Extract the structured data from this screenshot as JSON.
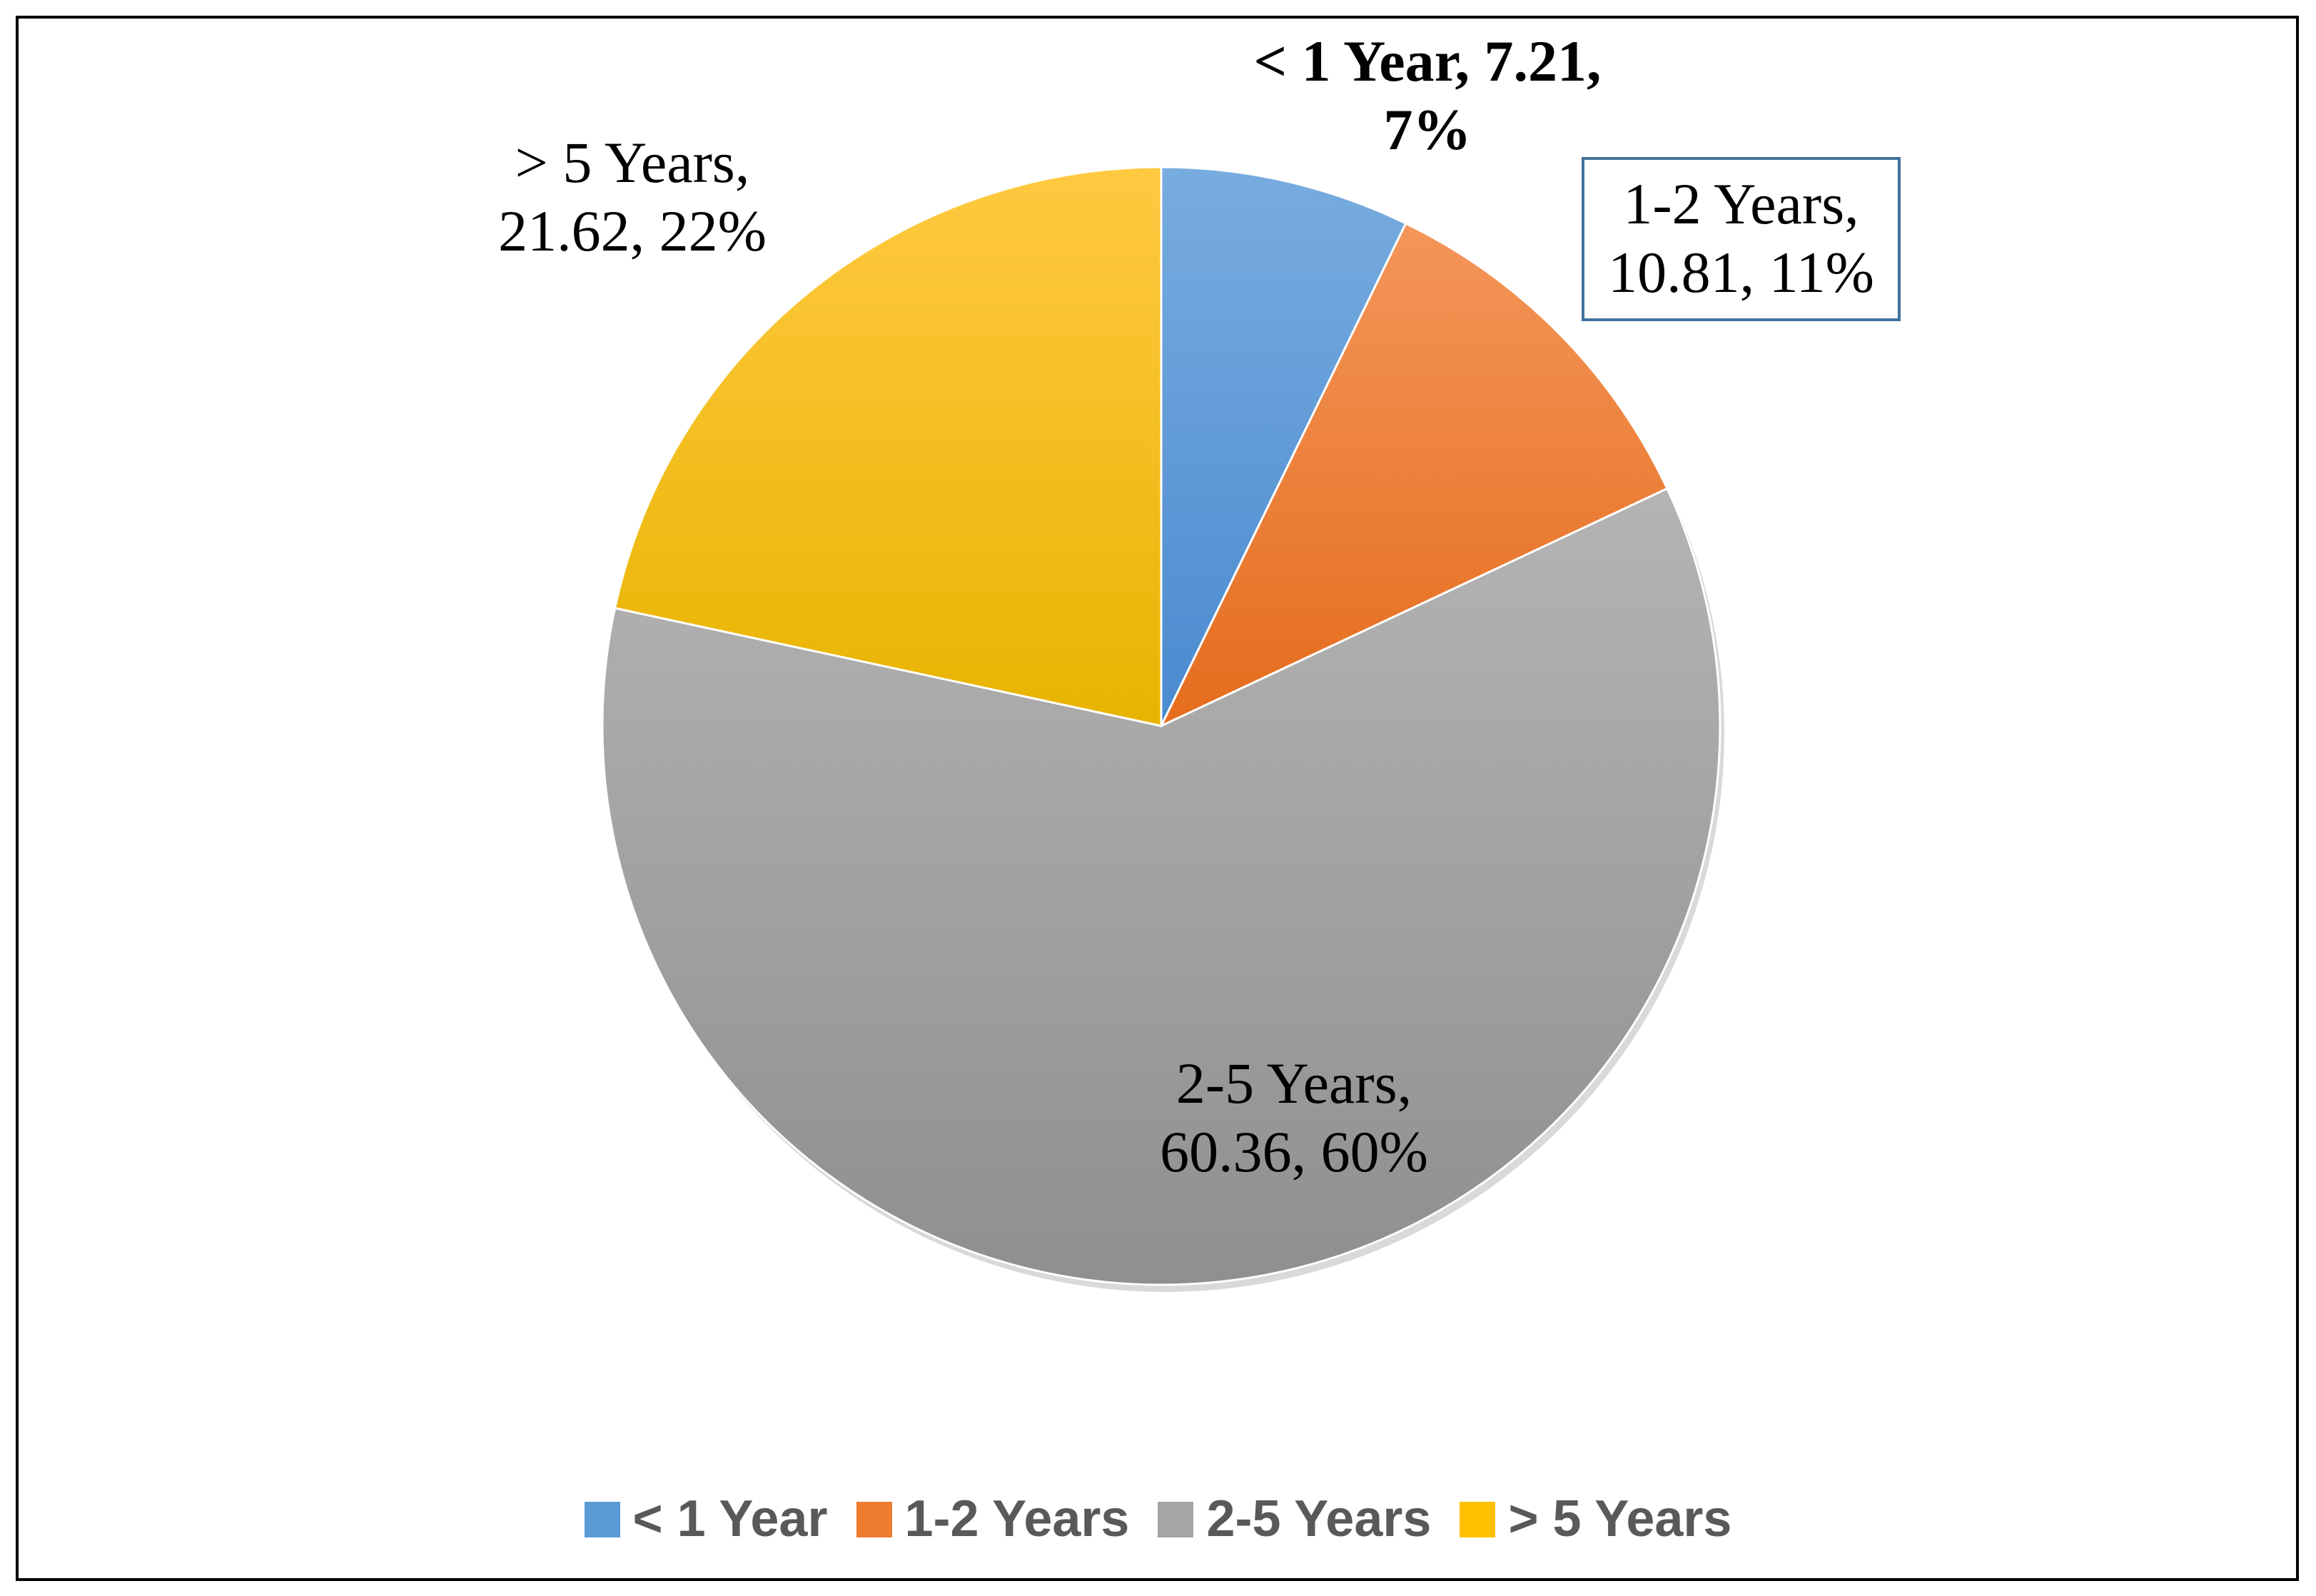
{
  "chart_data": {
    "type": "pie",
    "categories": [
      "< 1 Year",
      "1-2 Years",
      "2-5 Years",
      "> 5 Years"
    ],
    "values": [
      7.21,
      10.81,
      60.36,
      21.62
    ],
    "percent_labels": [
      "7%",
      "11%",
      "60%",
      "22%"
    ],
    "data_labels": [
      {
        "line1": "< 1 Year, 7.21,",
        "line2": "7%"
      },
      {
        "line1": "1-2 Years,",
        "line2": "10.81, 11%"
      },
      {
        "line1": "2-5 Years,",
        "line2": "60.36, 60%"
      },
      {
        "line1": "> 5 Years,",
        "line2": "21.62, 22%"
      }
    ],
    "colors": [
      "#5b9bd5",
      "#ed7d31",
      "#a5a5a5",
      "#ffc000"
    ],
    "colors_light": [
      "#78acdf",
      "#f4965a",
      "#b4b4b4",
      "#ffc941"
    ],
    "colors_dark": [
      "#4a8ad0",
      "#e56c1c",
      "#8f8f8f",
      "#e8b400"
    ],
    "legend_position": "bottom",
    "start_angle": "12 o'clock",
    "direction": "clockwise"
  }
}
